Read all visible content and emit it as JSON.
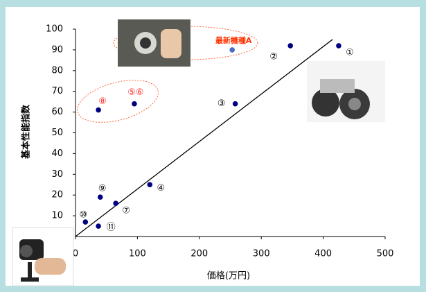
{
  "chart_data": {
    "type": "scatter",
    "xlabel": "価格(万円)",
    "ylabel": "基本性能指数",
    "xlim": [
      0,
      500
    ],
    "ylim": [
      0,
      100
    ],
    "xticks": [
      0,
      100,
      200,
      300,
      400,
      500
    ],
    "yticks": [
      10,
      20,
      30,
      40,
      50,
      60,
      70,
      80,
      90,
      100
    ],
    "grid": false,
    "series": [
      {
        "x": [
          425,
          347,
          258,
          120,
          95,
          65,
          37,
          40,
          16,
          37,
          253
        ],
        "values": [
          92,
          92,
          64,
          25,
          64,
          16,
          61,
          19,
          7,
          5,
          90
        ],
        "labels": [
          "①",
          "②",
          "③",
          "④",
          "⑤⑥",
          "⑦",
          "⑧",
          "⑨",
          "⑩",
          "⑪",
          "最新機種A"
        ],
        "colors": [
          "#000080",
          "#000080",
          "#000080",
          "#000080",
          "#000080",
          "#000080",
          "#000080",
          "#000080",
          "#000080",
          "#000080",
          "#4a6fc0"
        ],
        "label_colors": [
          "#000000",
          "#000000",
          "#000000",
          "#000000",
          "#ff2a2a",
          "#000000",
          "#ff2a2a",
          "#000000",
          "#000000",
          "#000000",
          "#ff3300"
        ]
      }
    ],
    "trendline": {
      "x": [
        0,
        415
      ],
      "values": [
        0,
        95
      ],
      "color": "#000000"
    }
  }
}
